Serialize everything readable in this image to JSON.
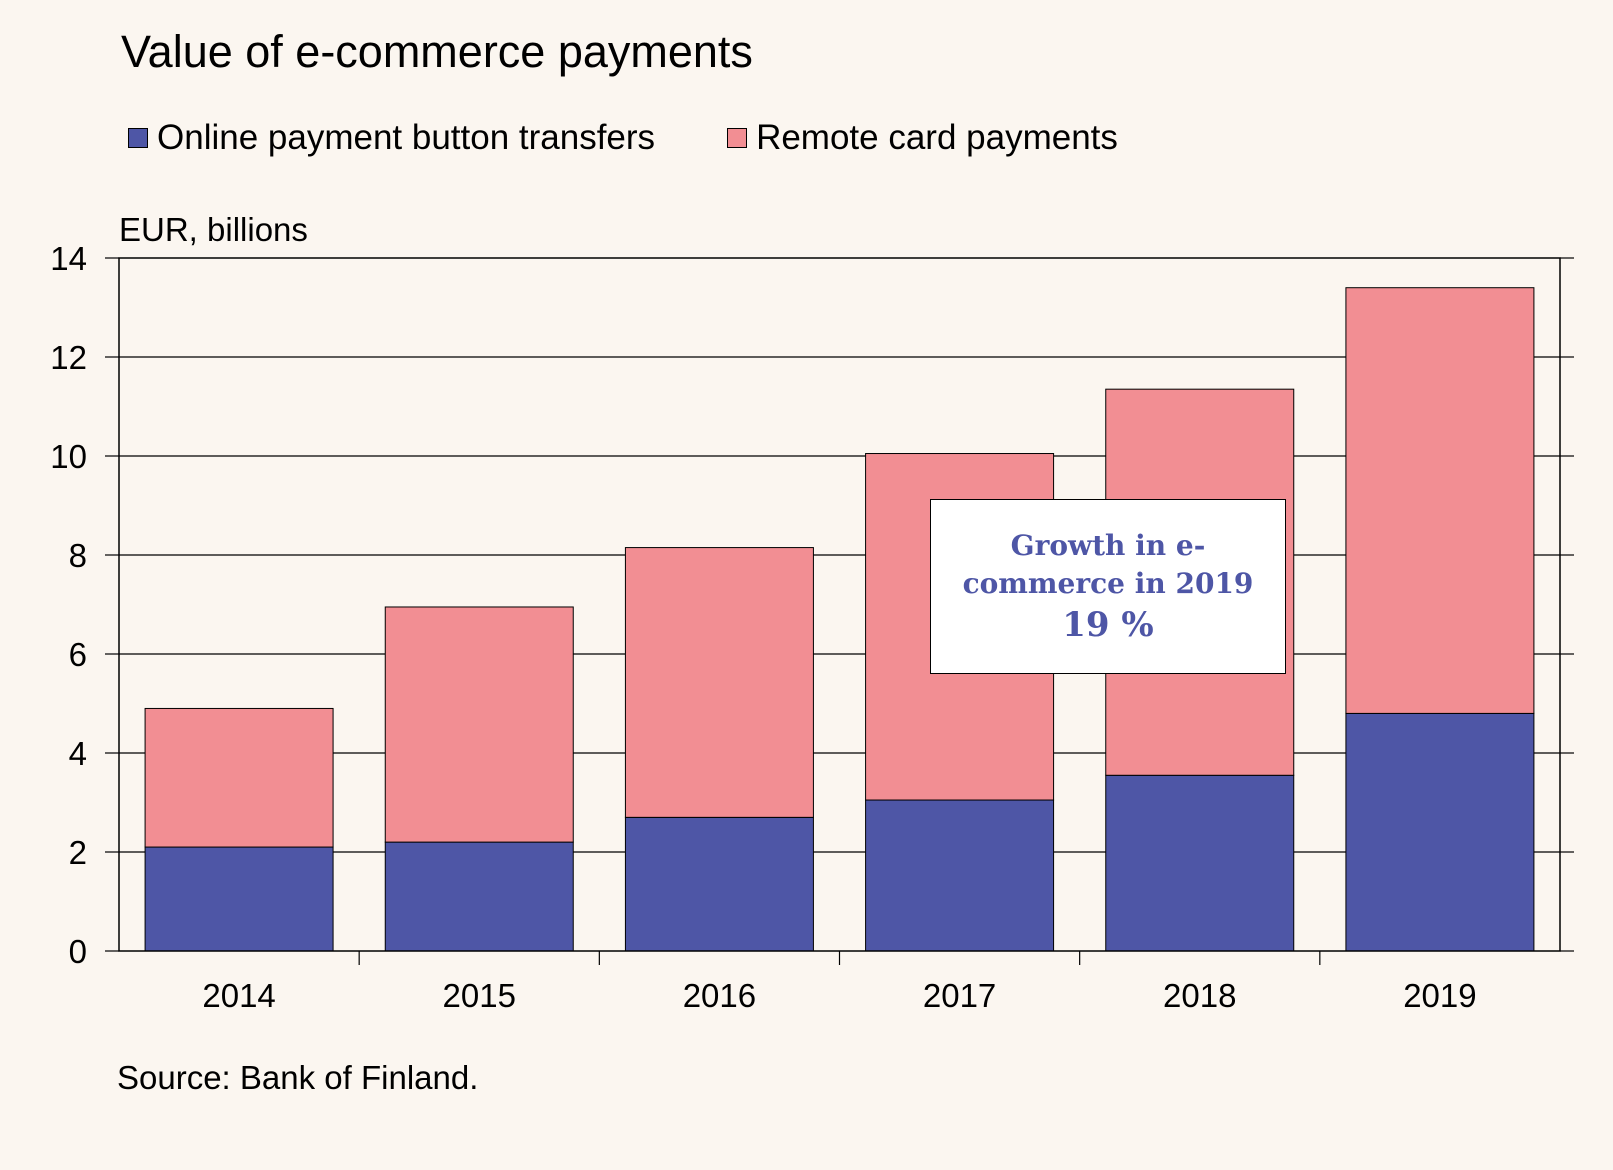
{
  "title": "Value of e-commerce payments",
  "unit_label": "EUR, billions",
  "source": "Source: Bank of Finland.",
  "annotation": {
    "text": "Growth in e-commerce in 2019",
    "value": "19 %"
  },
  "colors": {
    "background": "#fbf6f0",
    "online": "#4e56a6",
    "card": "#f28e93",
    "annotation_text": "#4e56a6"
  },
  "chart_data": {
    "type": "bar",
    "stacked": true,
    "categories": [
      "2014",
      "2015",
      "2016",
      "2017",
      "2018",
      "2019"
    ],
    "series": [
      {
        "name": "Online payment button transfers",
        "values": [
          2.1,
          2.2,
          2.7,
          3.05,
          3.55,
          4.8
        ]
      },
      {
        "name": "Remote card payments",
        "values": [
          2.8,
          4.75,
          5.45,
          7.0,
          7.8,
          8.6
        ]
      }
    ],
    "ylabel": "EUR, billions",
    "ylim": [
      0,
      14
    ],
    "yticks": [
      0,
      2,
      4,
      6,
      8,
      10,
      12,
      14
    ],
    "grid": true,
    "legend": "top-left"
  }
}
